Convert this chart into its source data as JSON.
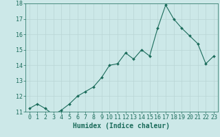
{
  "x": [
    0,
    1,
    2,
    3,
    4,
    5,
    6,
    7,
    8,
    9,
    10,
    11,
    12,
    13,
    14,
    15,
    16,
    17,
    18,
    19,
    20,
    21,
    22,
    23
  ],
  "y": [
    11.2,
    11.5,
    11.2,
    10.8,
    11.1,
    11.5,
    12.0,
    12.3,
    12.6,
    13.2,
    14.0,
    14.1,
    14.8,
    14.4,
    15.0,
    14.6,
    16.4,
    17.9,
    17.0,
    16.4,
    15.9,
    15.4,
    14.1,
    14.6
  ],
  "xlabel": "Humidex (Indice chaleur)",
  "ylim": [
    11,
    18
  ],
  "xlim_min": -0.5,
  "xlim_max": 23.5,
  "bg_color": "#cce8e8",
  "line_color": "#1a6b5a",
  "grid_color": "#b8d4d4",
  "tick_color": "#1a6b5a",
  "yticks": [
    11,
    12,
    13,
    14,
    15,
    16,
    17,
    18
  ],
  "xticks": [
    0,
    1,
    2,
    3,
    4,
    5,
    6,
    7,
    8,
    9,
    10,
    11,
    12,
    13,
    14,
    15,
    16,
    17,
    18,
    19,
    20,
    21,
    22,
    23
  ],
  "tick_fontsize": 6,
  "xlabel_fontsize": 7,
  "marker_size": 2.0,
  "linewidth": 0.8
}
